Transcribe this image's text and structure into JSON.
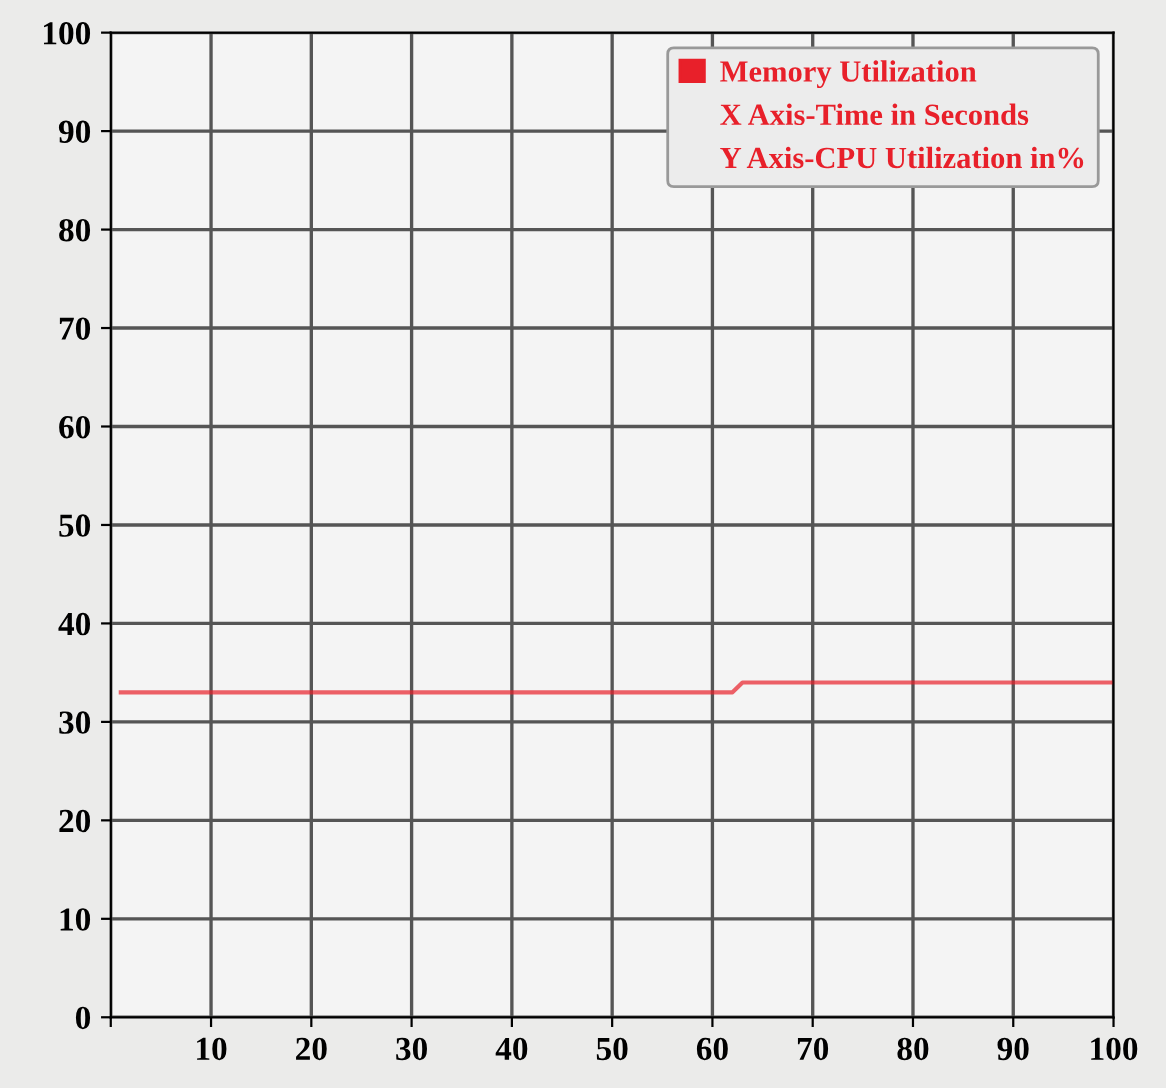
{
  "chart_data": {
    "type": "line",
    "x": [
      1,
      62,
      63,
      100
    ],
    "series": [
      {
        "name": "Memory Utilization",
        "color": "#e8202a",
        "values": [
          33,
          33,
          34,
          34
        ]
      }
    ],
    "annotations": [
      "X Axis-Time in Seconds",
      "Y Axis-CPU Utilization in%"
    ],
    "xlim": [
      0,
      100
    ],
    "xticks": [
      {
        "value": 0,
        "label": null
      },
      10,
      20,
      30,
      40,
      50,
      60,
      70,
      80,
      90,
      100
    ],
    "ylim": [
      0,
      100
    ],
    "yticks": [
      0,
      10,
      20,
      30,
      40,
      50,
      60,
      70,
      80,
      90,
      100
    ],
    "grid": true,
    "legend": "top right",
    "marker": "none",
    "line_style": "solid"
  }
}
